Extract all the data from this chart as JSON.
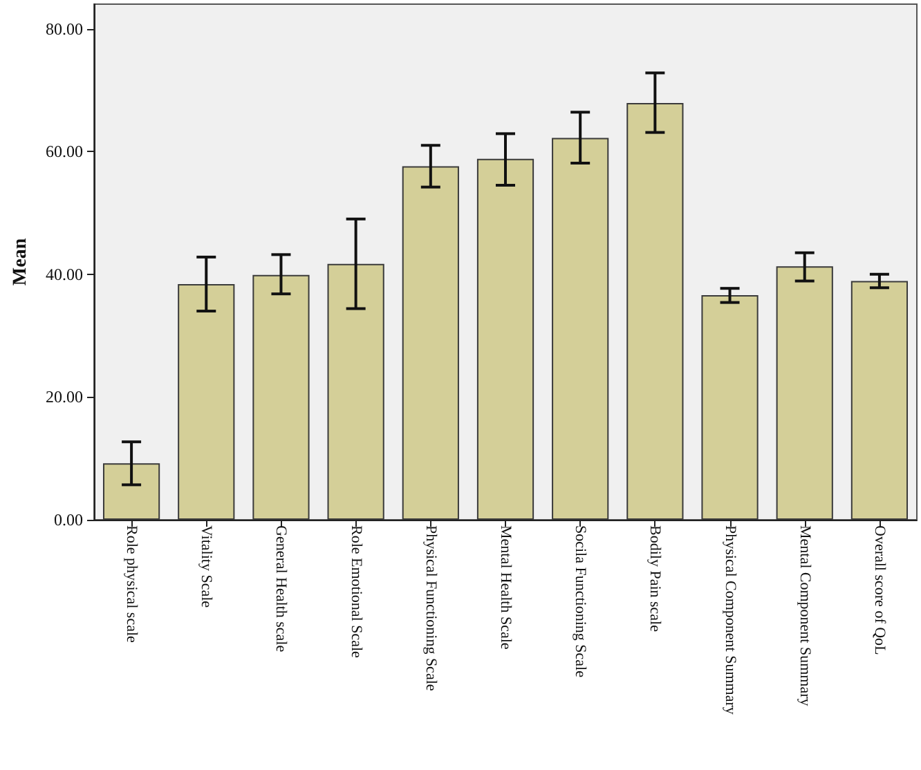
{
  "chart_data": {
    "type": "bar",
    "ylabel": "Mean",
    "categories": [
      "Role physical scale",
      "Vitality Scale",
      "General Health scale",
      "Role Emotional Scale",
      "Physical Functioning Scale",
      "Mental Health Scale",
      "Socila Functioning Scale",
      "Bodily Pain scale",
      "Physical Component Summary",
      "Mental Component Summary",
      "Overall score of QoL"
    ],
    "values": [
      9.2,
      38.4,
      39.9,
      41.7,
      57.6,
      58.8,
      62.2,
      67.9,
      36.6,
      41.3,
      38.9
    ],
    "errors": [
      [
        5.7,
        12.7
      ],
      [
        34.0,
        42.8
      ],
      [
        36.8,
        43.2
      ],
      [
        34.4,
        49.0
      ],
      [
        54.2,
        61.0
      ],
      [
        54.5,
        62.9
      ],
      [
        58.1,
        66.4
      ],
      [
        63.1,
        72.8
      ],
      [
        35.4,
        37.7
      ],
      [
        38.9,
        43.5
      ],
      [
        37.8,
        40.0
      ]
    ],
    "color": "#d4cf98",
    "ylim": [
      0,
      84
    ],
    "yticks": [
      {
        "value": 0,
        "label": "0.00"
      },
      {
        "value": 20,
        "label": "20.00"
      },
      {
        "value": 40,
        "label": "40.00"
      },
      {
        "value": 60,
        "label": "60.00"
      },
      {
        "value": 80,
        "label": "80.00"
      }
    ],
    "grid": false
  }
}
